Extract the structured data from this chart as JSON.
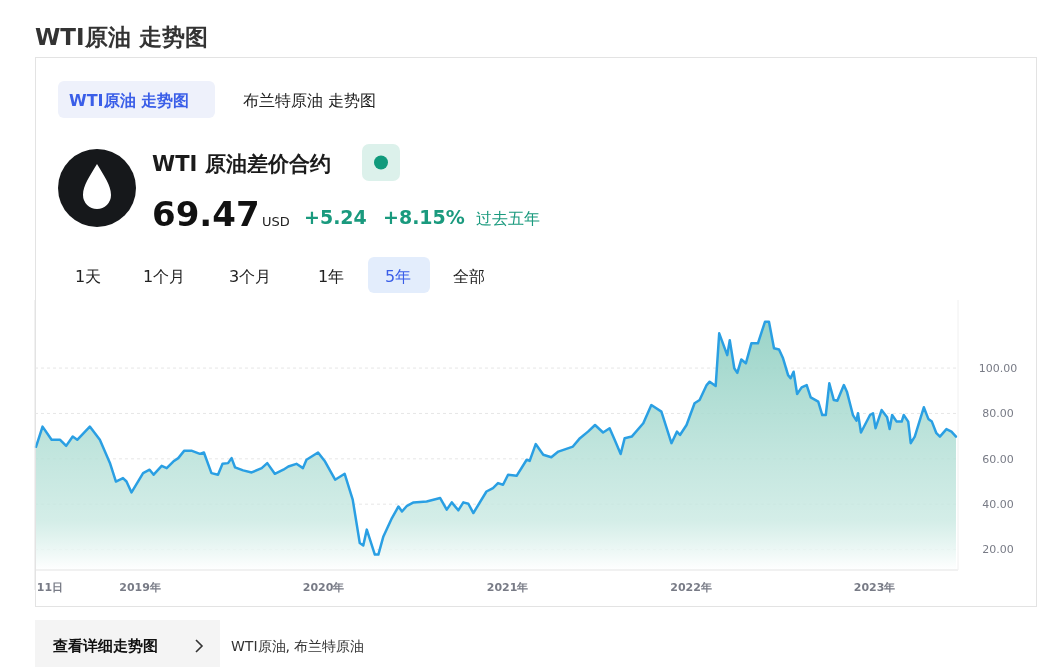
{
  "chart_data": {
    "type": "area",
    "title": "WTI原油 走势图",
    "annotations": [
      "WTI原油 走势图",
      "布兰特原油 走势图",
      "WTI 原油差价合约",
      "69.47",
      "USD",
      "+5.24",
      "+8.15%",
      "过去五年",
      "1天",
      "1个月",
      "3个月",
      "1年",
      "5年",
      "全部",
      "查看详细走势图",
      "WTI原油, 布兰特原油"
    ],
    "xlim": [
      "2018-06-06",
      "2023-06-16"
    ],
    "xticks": [
      {
        "value": "2018-06-11",
        "label": "11日"
      },
      {
        "value": "2019-01-01",
        "label": "2019年"
      },
      {
        "value": "2020-01-01",
        "label": "2020年"
      },
      {
        "value": "2021-01-01",
        "label": "2021年"
      },
      {
        "value": "2022-01-01",
        "label": "2022年"
      },
      {
        "value": "2023-01-01",
        "label": "2023年"
      }
    ],
    "ylim": [
      11,
      130
    ],
    "yticks": [
      {
        "value": 20,
        "label": "20.00"
      },
      {
        "value": 40,
        "label": "40.00"
      },
      {
        "value": 60,
        "label": "60.00"
      },
      {
        "value": 80,
        "label": "80.00"
      },
      {
        "value": 100,
        "label": "100.00"
      }
    ],
    "grid": "y",
    "x": [
      "2018-06-08",
      "2018-06-21",
      "2018-07-09",
      "2018-07-26",
      "2018-08-07",
      "2018-08-20",
      "2018-08-29",
      "2018-09-23",
      "2018-10-13",
      "2018-11-02",
      "2018-11-14",
      "2018-11-28",
      "2018-12-05",
      "2018-12-15",
      "2019-01-07",
      "2019-01-20",
      "2019-01-28",
      "2019-02-13",
      "2019-02-23",
      "2019-03-08",
      "2019-03-18",
      "2019-03-30",
      "2019-04-13",
      "2019-04-30",
      "2019-05-08",
      "2019-05-23",
      "2019-06-05",
      "2019-06-14",
      "2019-06-25",
      "2019-07-02",
      "2019-07-09",
      "2019-07-25",
      "2019-08-11",
      "2019-08-31",
      "2019-09-11",
      "2019-09-26",
      "2019-10-13",
      "2019-10-23",
      "2019-11-08",
      "2019-11-21",
      "2019-11-28",
      "2019-12-21",
      "2020-01-04",
      "2020-01-24",
      "2020-02-12",
      "2020-02-28",
      "2020-03-13",
      "2020-03-20",
      "2020-03-27",
      "2020-04-12",
      "2020-04-19",
      "2020-04-29",
      "2020-05-16",
      "2020-05-29",
      "2020-06-05",
      "2020-06-15",
      "2020-06-28",
      "2020-07-24",
      "2020-08-20",
      "2020-09-02",
      "2020-09-12",
      "2020-09-25",
      "2020-10-05",
      "2020-10-15",
      "2020-10-25",
      "2020-11-20",
      "2020-12-03",
      "2020-12-13",
      "2020-12-23",
      "2021-01-02",
      "2021-01-19",
      "2021-02-08",
      "2021-02-14",
      "2021-02-26",
      "2021-03-13",
      "2021-03-29",
      "2021-04-12",
      "2021-05-11",
      "2021-05-25",
      "2021-06-10",
      "2021-06-24",
      "2021-07-10",
      "2021-07-23",
      "2021-08-02",
      "2021-08-14",
      "2021-08-22",
      "2021-09-05",
      "2021-09-28",
      "2021-10-14",
      "2021-11-03",
      "2021-11-23",
      "2021-12-04",
      "2021-12-10",
      "2021-12-23",
      "2022-01-08",
      "2022-01-18",
      "2022-02-01",
      "2022-02-07",
      "2022-02-19",
      "2022-02-26",
      "2022-03-14",
      "2022-03-19",
      "2022-03-28",
      "2022-04-03",
      "2022-04-11",
      "2022-04-20",
      "2022-05-01",
      "2022-05-14",
      "2022-05-28",
      "2022-06-05",
      "2022-06-15",
      "2022-06-25",
      "2022-07-03",
      "2022-07-13",
      "2022-07-18",
      "2022-07-24",
      "2022-07-31",
      "2022-08-09",
      "2022-08-19",
      "2022-08-27",
      "2022-09-11",
      "2022-09-19",
      "2022-09-26",
      "2022-10-03",
      "2022-10-12",
      "2022-10-19",
      "2022-11-01",
      "2022-11-07",
      "2022-11-19",
      "2022-11-26",
      "2022-11-29",
      "2022-12-05",
      "2022-12-23",
      "2022-12-29",
      "2023-01-03",
      "2023-01-15",
      "2023-01-26",
      "2023-01-31",
      "2023-02-05",
      "2023-02-14",
      "2023-02-24",
      "2023-02-28",
      "2023-03-09",
      "2023-03-14",
      "2023-03-22",
      "2023-04-09",
      "2023-04-18",
      "2023-04-25",
      "2023-05-04",
      "2023-05-11",
      "2023-05-24",
      "2023-06-03",
      "2023-06-12"
    ],
    "series": [
      {
        "color": "#2a9fe3",
        "values": [
          65.3,
          74.2,
          68.4,
          68.4,
          65.7,
          69.8,
          68.4,
          74.2,
          68.4,
          58.2,
          50.0,
          51.5,
          50.0,
          45.2,
          53.7,
          55.2,
          53.0,
          56.9,
          55.9,
          58.8,
          60.3,
          63.6,
          63.6,
          62.2,
          62.8,
          53.7,
          53.0,
          57.8,
          58.1,
          60.3,
          56.2,
          54.9,
          54.0,
          55.9,
          58.1,
          53.4,
          55.2,
          56.6,
          57.8,
          55.9,
          59.6,
          62.8,
          58.8,
          50.8,
          53.4,
          42.0,
          22.9,
          21.8,
          28.8,
          17.8,
          17.8,
          25.8,
          33.9,
          39.0,
          36.8,
          39.3,
          40.8,
          41.2,
          42.7,
          37.6,
          40.8,
          37.3,
          40.8,
          40.2,
          36.1,
          45.6,
          47.1,
          49.3,
          48.6,
          53.0,
          52.5,
          59.6,
          59.1,
          66.5,
          61.8,
          60.7,
          63.2,
          65.4,
          69.1,
          72.0,
          74.9,
          71.6,
          73.5,
          68.4,
          62.1,
          69.1,
          69.8,
          75.7,
          83.7,
          80.8,
          66.9,
          72.0,
          70.5,
          74.9,
          84.5,
          85.9,
          92.5,
          94.0,
          92.1,
          115.3,
          105.7,
          112.3,
          99.9,
          97.9,
          103.8,
          102.1,
          110.9,
          110.9,
          120.4,
          120.4,
          108.7,
          108.2,
          104.3,
          96.9,
          95.5,
          98.4,
          88.6,
          91.5,
          92.5,
          87.1,
          85.2,
          79.3,
          79.3,
          93.3,
          85.9,
          85.6,
          92.5,
          89.6,
          79.3,
          76.8,
          80.1,
          71.6,
          79.3,
          80.1,
          73.5,
          81.5,
          78.3,
          73.1,
          79.3,
          76.4,
          76.4,
          79.3,
          76.4,
          66.9,
          69.8,
          82.7,
          77.6,
          76.4,
          71.3,
          69.8,
          73.1,
          72.0,
          69.8
        ]
      }
    ]
  }
}
